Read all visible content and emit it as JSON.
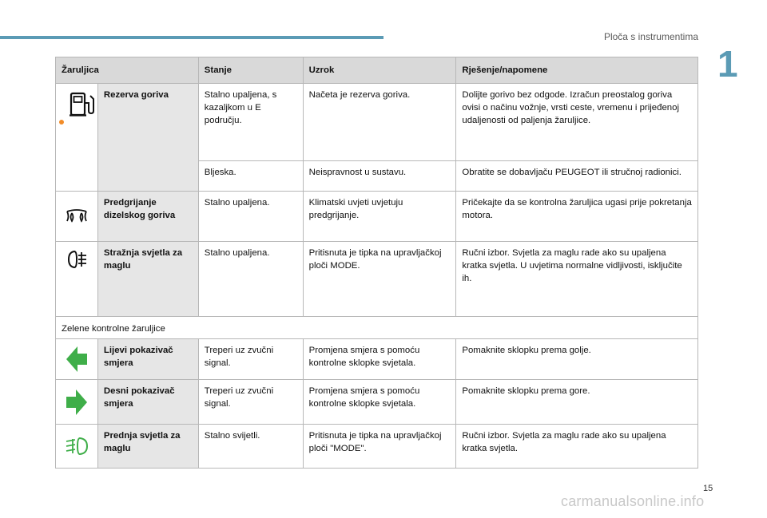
{
  "header": {
    "chapter_title": "Ploča s instrumentima",
    "chapter_number": "1",
    "accent_color": "#5b9bb5"
  },
  "footer": {
    "page_number": "15",
    "watermark": "carmanualsonline.info"
  },
  "table": {
    "columns": [
      "Žaruljica",
      "Stanje",
      "Uzrok",
      "Rješenje/napomene"
    ],
    "rows": [
      {
        "icon": "fuel-pump-icon",
        "name": "Rezerva goriva",
        "state": "Stalno upaljena, s kazaljkom u E području.",
        "cause": "Načeta je rezerva goriva.",
        "solution": "Dolijte gorivo bez odgode. Izračun preostalog goriva ovisi o načinu vožnje, vrsti ceste, vremenu i prijeđenoj udaljenosti od paljenja žaruljice."
      },
      {
        "state": "Bljeska.",
        "cause": "Neispravnost u sustavu.",
        "solution": "Obratite se dobavljaču PEUGEOT ili stručnoj radionici."
      },
      {
        "icon": "glow-plug-icon",
        "name": "Predgrijanje dizelskog goriva",
        "state": "Stalno upaljena.",
        "cause": "Klimatski uvjeti uvjetuju predgrijanje.",
        "solution": "Pričekajte da se kontrolna žaruljica ugasi prije pokretanja motora."
      },
      {
        "icon": "rear-fog-light-icon",
        "name": "Stražnja svjetla za maglu",
        "state": "Stalno upaljena.",
        "cause": "Pritisnuta je tipka na upravljačkoj ploči MODE.",
        "solution": "Ručni izbor. Svjetla za maglu rade ako su upaljena kratka svjetla. U uvjetima normalne vidljivosti, isključite ih."
      }
    ],
    "section_label": "Zelene kontrolne žaruljice",
    "green_rows": [
      {
        "icon": "left-arrow-icon",
        "name": "Lijevi pokazivač smjera",
        "state": "Treperi uz zvučni signal.",
        "cause": "Promjena smjera s pomoću kontrolne sklopke svjetala.",
        "solution": "Pomaknite sklopku prema golje."
      },
      {
        "icon": "right-arrow-icon",
        "name": "Desni pokazivač smjera",
        "state": "Treperi uz zvučni signal.",
        "cause": "Promjena smjera s pomoću kontrolne sklopke svjetala.",
        "solution": "Pomaknite sklopku prema gore."
      },
      {
        "icon": "front-fog-light-icon",
        "name": "Prednja svjetla za maglu",
        "state": "Stalno svijetli.",
        "cause": "Pritisnuta je tipka na upravljačkoj ploči \"MODE\".",
        "solution": "Ručni izbor. Svjetla za maglu rade ako su upaljena kratka svjetla."
      }
    ],
    "colors": {
      "header_bg": "#d9d9d9",
      "name_bg": "#e6e6e6",
      "green_icon": "#3fae49",
      "warning_dot": "#f28c28"
    }
  }
}
